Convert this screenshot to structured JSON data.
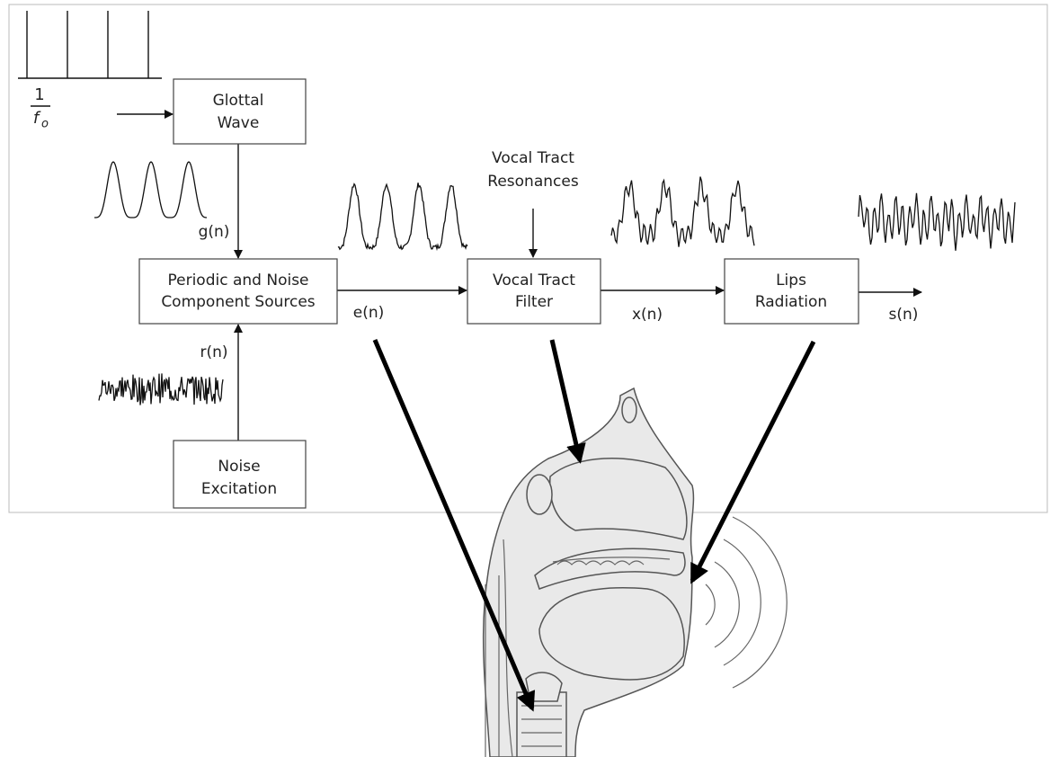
{
  "title_fraction": {
    "numerator": "1",
    "denominator": "f",
    "subscript": "o"
  },
  "nodes": [
    {
      "lines": [
        "Glottal",
        "Wave"
      ]
    },
    {
      "lines": [
        "Periodic and Noise",
        "Component Sources"
      ]
    },
    {
      "lines": [
        "Vocal Tract",
        "Filter"
      ]
    },
    {
      "lines": [
        "Lips",
        "Radiation"
      ]
    },
    {
      "lines": [
        "Noise",
        "Excitation"
      ]
    }
  ],
  "input_label": {
    "lines": [
      "Vocal Tract",
      "Resonances"
    ]
  },
  "signals": [
    "g(n)",
    "r(n)",
    "e(n)",
    "x(n)",
    "s(n)"
  ]
}
